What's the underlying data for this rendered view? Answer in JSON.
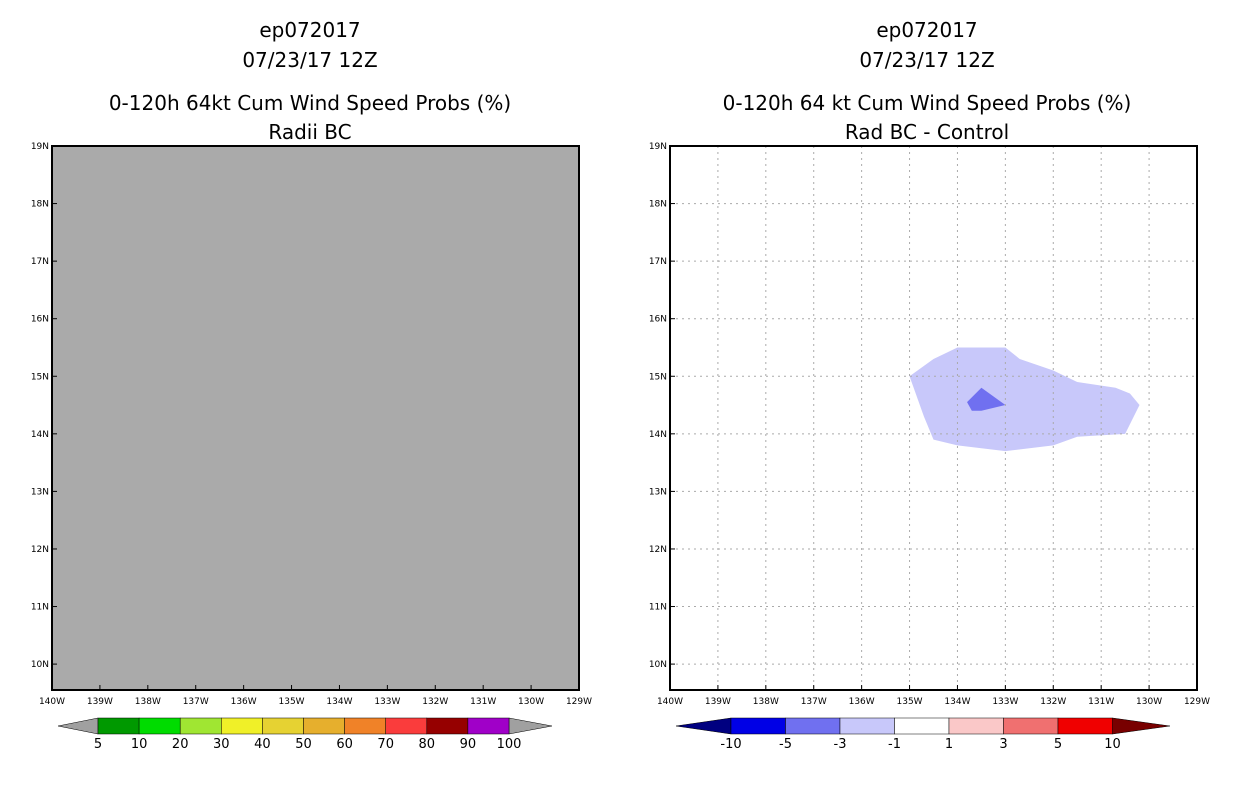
{
  "panels": [
    {
      "title_lines": [
        "ep072017",
        "07/23/17 12Z",
        "0-120h 64kt Cum Wind Speed Probs (%)",
        "Radii BC"
      ],
      "fill_color": "#aaaaaa",
      "show_grid": false
    },
    {
      "title_lines": [
        "ep072017",
        "07/23/17 12Z",
        "0-120h 64 kt Cum Wind Speed Probs (%)",
        "Rad BC - Control"
      ],
      "fill_color": "#ffffff",
      "show_grid": true
    }
  ],
  "chart_data": [
    {
      "type": "map",
      "title": "0-120h 64kt Cum Wind Speed Probs (%) — Radii BC",
      "xlim": [
        -140,
        -129
      ],
      "ylim": [
        9.55,
        19
      ],
      "x_ticks": [
        -140,
        -139,
        -138,
        -137,
        -136,
        -135,
        -134,
        -133,
        -132,
        -131,
        -130,
        -129
      ],
      "x_tick_labels": [
        "140W",
        "139W",
        "138W",
        "137W",
        "136W",
        "135W",
        "134W",
        "133W",
        "132W",
        "131W",
        "130W",
        "129W"
      ],
      "y_ticks": [
        10,
        11,
        12,
        13,
        14,
        15,
        16,
        17,
        18,
        19
      ],
      "y_tick_labels": [
        "10N",
        "11N",
        "12N",
        "13N",
        "14N",
        "15N",
        "16N",
        "17N",
        "18N",
        "19N"
      ],
      "field": "undefined (gray fill)",
      "colorbar": {
        "labels": [
          "5",
          "10",
          "20",
          "30",
          "40",
          "50",
          "60",
          "70",
          "80",
          "90",
          "100"
        ],
        "colors": [
          "#009900",
          "#00dc00",
          "#a0e632",
          "#f0f028",
          "#e6d232",
          "#e6af2d",
          "#f08228",
          "#fa3c3c",
          "#960000",
          "#a000c8"
        ],
        "end_color": "#a0a0a0"
      }
    },
    {
      "type": "map",
      "title": "0-120h 64 kt Cum Wind Speed Probs (%) — Rad BC - Control",
      "xlim": [
        -140,
        -129
      ],
      "ylim": [
        9.55,
        19
      ],
      "x_ticks": [
        -140,
        -139,
        -138,
        -137,
        -136,
        -135,
        -134,
        -133,
        -132,
        -131,
        -130,
        -129
      ],
      "x_tick_labels": [
        "140W",
        "139W",
        "138W",
        "137W",
        "136W",
        "135W",
        "134W",
        "133W",
        "132W",
        "131W",
        "130W",
        "129W"
      ],
      "y_ticks": [
        10,
        11,
        12,
        13,
        14,
        15,
        16,
        17,
        18,
        19
      ],
      "y_tick_labels": [
        "10N",
        "11N",
        "12N",
        "13N",
        "14N",
        "15N",
        "16N",
        "17N",
        "18N",
        "19N"
      ],
      "contours": [
        {
          "level": "-3 to -1",
          "color": "#c8c8fa",
          "polygon": [
            [
              -135.0,
              15.0
            ],
            [
              -134.5,
              15.3
            ],
            [
              -134.0,
              15.5
            ],
            [
              -133.0,
              15.5
            ],
            [
              -132.7,
              15.3
            ],
            [
              -132.0,
              15.1
            ],
            [
              -131.5,
              14.9
            ],
            [
              -130.7,
              14.8
            ],
            [
              -130.4,
              14.7
            ],
            [
              -130.2,
              14.5
            ],
            [
              -130.5,
              14.0
            ],
            [
              -131.5,
              13.95
            ],
            [
              -132.0,
              13.8
            ],
            [
              -133.0,
              13.7
            ],
            [
              -134.0,
              13.8
            ],
            [
              -134.5,
              13.9
            ],
            [
              -134.7,
              14.3
            ]
          ]
        },
        {
          "level": "-5 to -3",
          "color": "#7070f0",
          "polygon": [
            [
              -133.8,
              14.55
            ],
            [
              -133.5,
              14.8
            ],
            [
              -133.0,
              14.5
            ],
            [
              -133.5,
              14.4
            ],
            [
              -133.7,
              14.4
            ]
          ]
        }
      ],
      "colorbar": {
        "labels": [
          "-10",
          "-5",
          "-3",
          "-1",
          "1",
          "3",
          "5",
          "10"
        ],
        "colors": [
          "#0000e6",
          "#7070f0",
          "#c8c8fa",
          "#ffffff",
          "#fac8c8",
          "#f07070",
          "#f00000"
        ],
        "low_end_color": "#000080",
        "high_end_color": "#780000"
      }
    }
  ]
}
